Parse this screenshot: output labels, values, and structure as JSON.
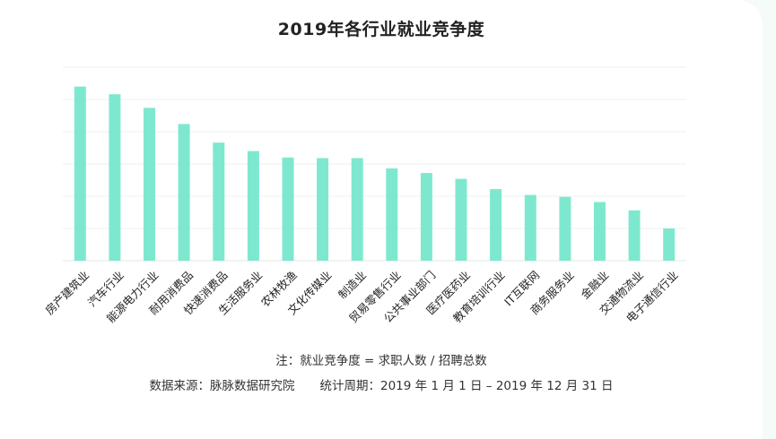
{
  "chart_data": {
    "type": "bar",
    "title": "2019年各行业就业竞争度",
    "categories": [
      "房产建筑业",
      "汽车行业",
      "能源电力行业",
      "耐用消费品",
      "快速消费品",
      "生活服务业",
      "农林牧渔",
      "文化传媒业",
      "制造业",
      "贸易零售行业",
      "公共事业部门",
      "医疗医药业",
      "教育培训行业",
      "IT互联网",
      "商务服务业",
      "金融业",
      "交通物流业",
      "电子通信行业"
    ],
    "values": [
      2.7,
      2.58,
      2.37,
      2.12,
      1.83,
      1.7,
      1.6,
      1.59,
      1.59,
      1.43,
      1.36,
      1.27,
      1.11,
      1.02,
      0.99,
      0.91,
      0.78,
      0.5
    ],
    "ylim": [
      0,
      3.0
    ],
    "grid": true,
    "bar_color": "#7ee8cf",
    "xlabel": "",
    "ylabel": ""
  },
  "footer": {
    "note": "注：就业竞争度 = 求职人数 / 招聘总数",
    "source": "数据来源：脉脉数据研究院",
    "period": "统计周期：2019 年 1 月 1 日 – 2019 年 12 月 31 日"
  }
}
